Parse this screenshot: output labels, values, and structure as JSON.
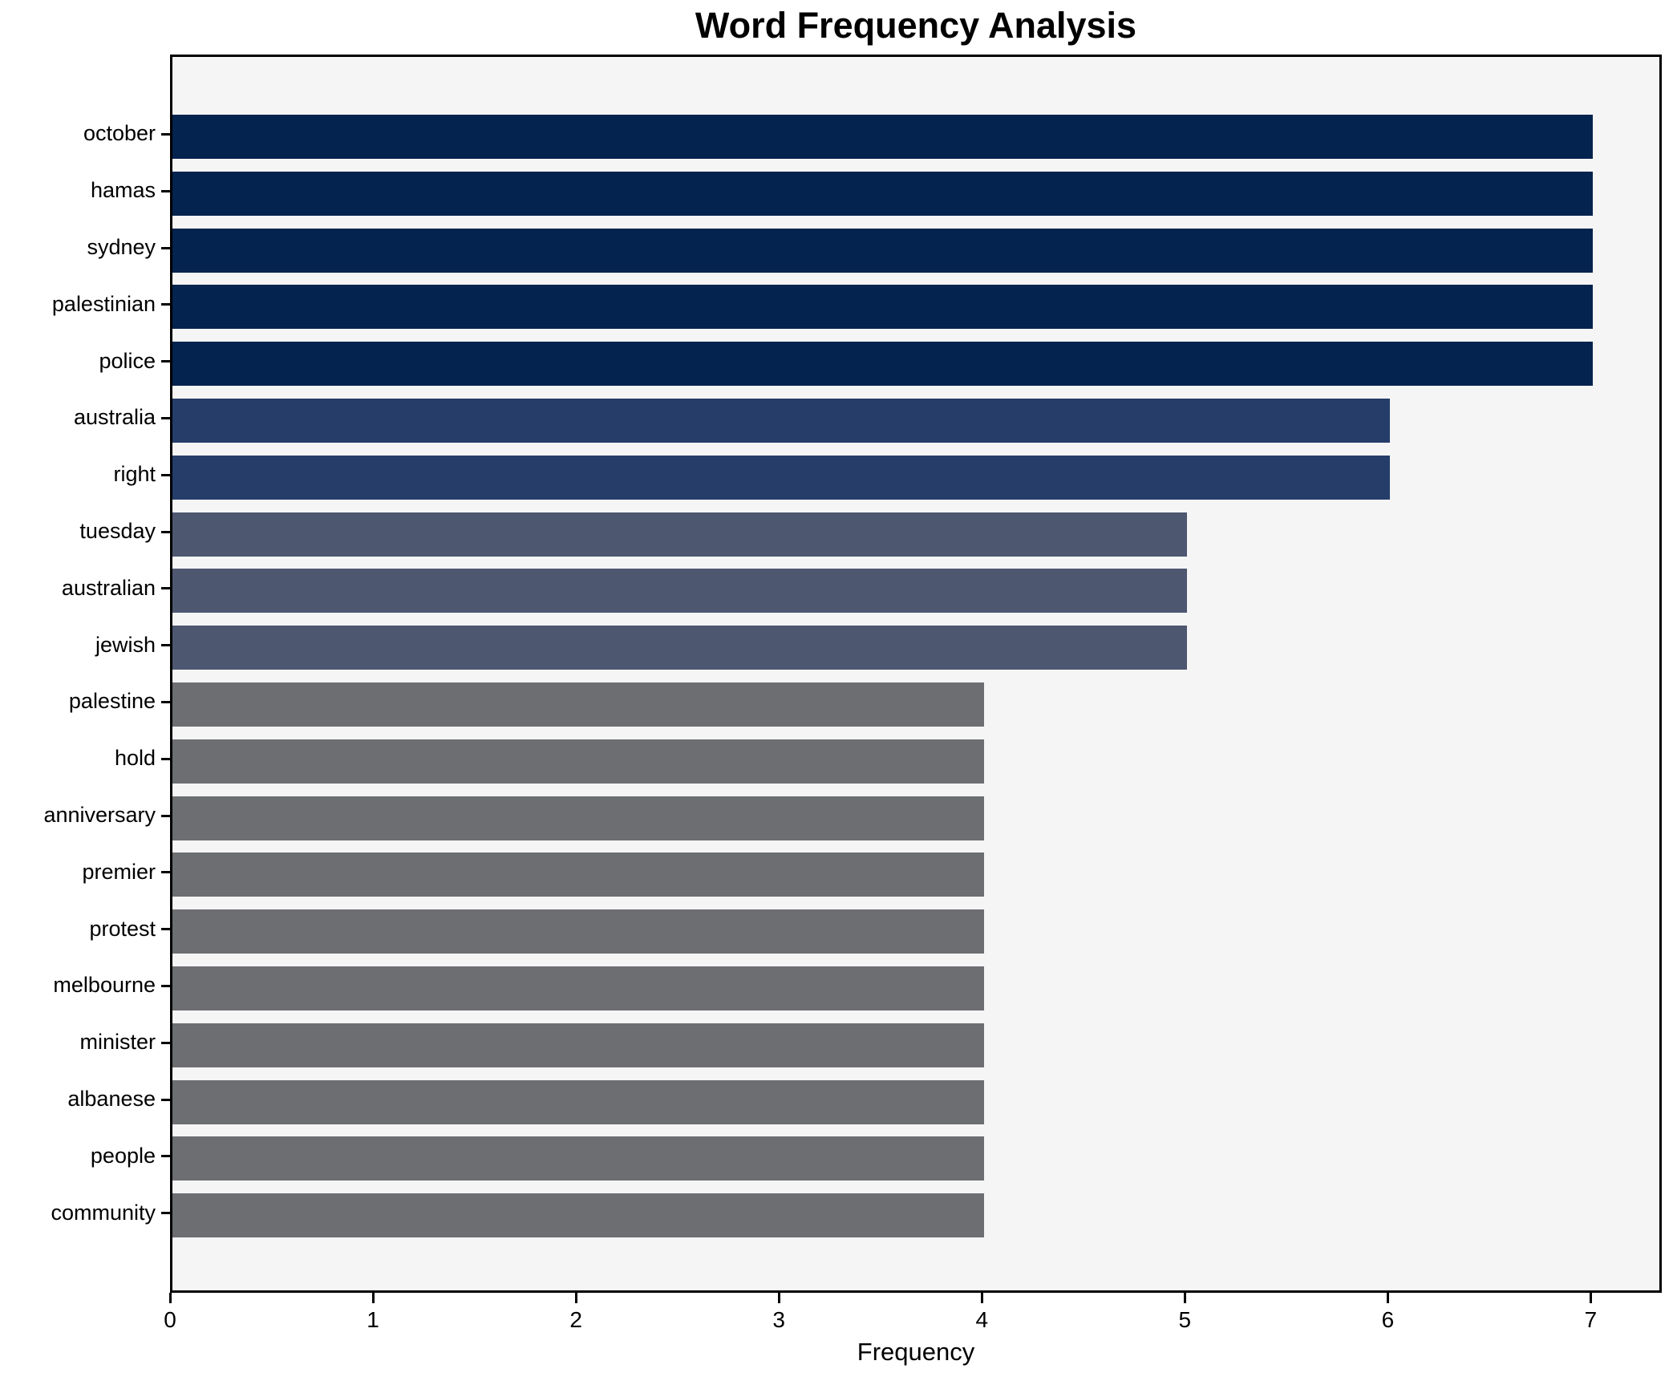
{
  "chart_data": {
    "type": "bar",
    "orientation": "horizontal",
    "title": "Word Frequency Analysis",
    "xlabel": "Frequency",
    "ylabel": "",
    "categories": [
      "october",
      "hamas",
      "sydney",
      "palestinian",
      "police",
      "australia",
      "right",
      "tuesday",
      "australian",
      "jewish",
      "palestine",
      "hold",
      "anniversary",
      "premier",
      "protest",
      "melbourne",
      "minister",
      "albanese",
      "people",
      "community"
    ],
    "values": [
      7,
      7,
      7,
      7,
      7,
      6,
      6,
      5,
      5,
      5,
      4,
      4,
      4,
      4,
      4,
      4,
      4,
      4,
      4,
      4
    ],
    "xticks": [
      0,
      1,
      2,
      3,
      4,
      5,
      6,
      7
    ],
    "xlim": [
      0,
      7.35
    ],
    "grid": false,
    "legend": false,
    "value_colors": {
      "7": "#04234e",
      "6": "#263d6a",
      "5": "#4e5770",
      "4": "#6c6e71"
    },
    "plot_background": "#f5f5f6",
    "figure_background": "#ffffff",
    "spine_color": "#000000"
  }
}
